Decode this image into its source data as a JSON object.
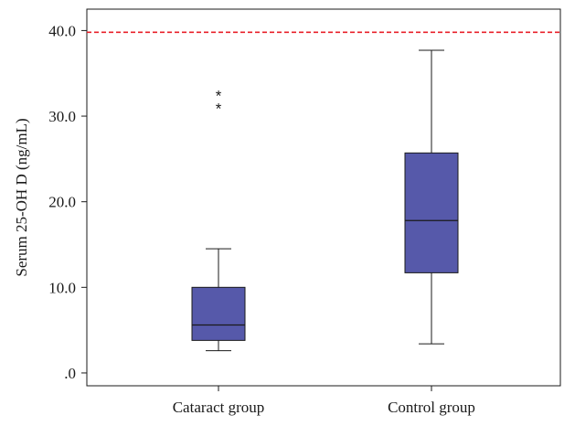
{
  "chart_data": {
    "type": "boxplot",
    "title": "",
    "xlabel": "",
    "ylabel": "Serum 25-OH D (ng/mL)",
    "ylim": [
      -1.5,
      42.5
    ],
    "yticks": [
      {
        "value": 0,
        "label": ".0"
      },
      {
        "value": 10,
        "label": "10.0"
      },
      {
        "value": 20,
        "label": "20.0"
      },
      {
        "value": 30,
        "label": "30.0"
      },
      {
        "value": 40,
        "label": "40.0"
      }
    ],
    "categories": [
      "Cataract group",
      "Control group"
    ],
    "boxes": [
      {
        "name": "Cataract group",
        "whisker_low": 2.6,
        "q1": 3.8,
        "median": 5.6,
        "q3": 10.0,
        "whisker_high": 14.5,
        "outliers": [
          31.1,
          32.6
        ]
      },
      {
        "name": "Control group",
        "whisker_low": 3.4,
        "q1": 11.7,
        "median": 17.8,
        "q3": 25.7,
        "whisker_high": 37.7,
        "outliers": []
      }
    ],
    "outlier_marker": "*",
    "reference_line": {
      "value": 39.8,
      "style": "dashed",
      "color": "#e8202a"
    },
    "box_fill": "#5659aa",
    "grid": false,
    "legend": "none"
  }
}
